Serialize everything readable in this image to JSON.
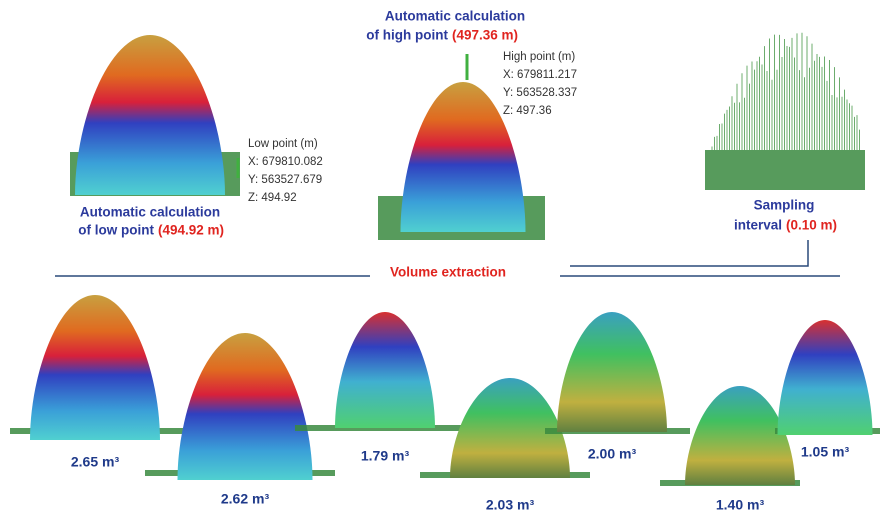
{
  "low_point": {
    "caption": "Automatic calculation",
    "caption_line2": "of low point",
    "caption_value": "(494.92 m)",
    "label": "Low point (m)",
    "coords": [
      "X: 679810.082",
      "Y: 563527.679",
      "Z: 494.92"
    ]
  },
  "high_point": {
    "caption": "Automatic calculation",
    "caption_line2": "of high point",
    "caption_value": "(497.36 m)",
    "label": "High point (m)",
    "coords": [
      "X: 679811.217",
      "Y: 563528.337",
      "Z: 497.36"
    ]
  },
  "sampling": {
    "caption": "Sampling",
    "caption_line2": "interval",
    "caption_value": "(0.10 m)"
  },
  "divider_label": "Volume extraction",
  "volumes": [
    "2.65 m³",
    "2.62 m³",
    "1.79 m³",
    "2.03 m³",
    "2.00 m³",
    "1.40 m³",
    "1.05 m³"
  ]
}
